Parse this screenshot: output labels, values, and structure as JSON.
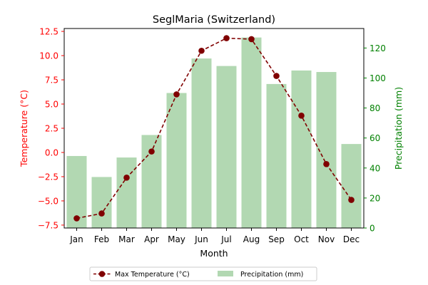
{
  "chart_data": {
    "type": "bar",
    "title": "SeglMaria (Switzerland)",
    "xlabel": "Month",
    "ylabel_left": "Temperature (°C)",
    "ylabel_right": "Precipitation (mm)",
    "categories": [
      "Jan",
      "Feb",
      "Mar",
      "Apr",
      "May",
      "Jun",
      "Jul",
      "Aug",
      "Sep",
      "Oct",
      "Nov",
      "Dec"
    ],
    "y_left_ticks": [
      "−7.5",
      "−5.0",
      "−2.5",
      "0.0",
      "2.5",
      "5.0",
      "7.5",
      "10.0",
      "12.5"
    ],
    "y_left_tick_values": [
      -7.5,
      -5.0,
      -2.5,
      0.0,
      2.5,
      5.0,
      7.5,
      10.0,
      12.5
    ],
    "y_right_ticks": [
      "0",
      "20",
      "40",
      "60",
      "80",
      "100",
      "120"
    ],
    "y_right_tick_values": [
      0,
      20,
      40,
      60,
      80,
      100,
      120
    ],
    "ylim_left": [
      -7.8,
      12.8
    ],
    "ylim_right": [
      0,
      133
    ],
    "series": [
      {
        "name": "Max Temperature (°C)",
        "kind": "line",
        "axis": "left",
        "values": [
          -6.8,
          -6.3,
          -2.6,
          0.1,
          6.0,
          10.5,
          11.8,
          11.7,
          7.9,
          3.8,
          -1.2,
          -4.9
        ]
      },
      {
        "name": "Precipitation (mm)",
        "kind": "bar",
        "axis": "right",
        "values": [
          48,
          34,
          47,
          62,
          90,
          113,
          108,
          127,
          96,
          105,
          104,
          56
        ]
      }
    ],
    "legend": "bottom-center",
    "grid": false,
    "colors": {
      "line": "#800000",
      "bar": "#b2d8b2",
      "left_axis": "#ff0000",
      "right_axis": "#008000"
    }
  }
}
